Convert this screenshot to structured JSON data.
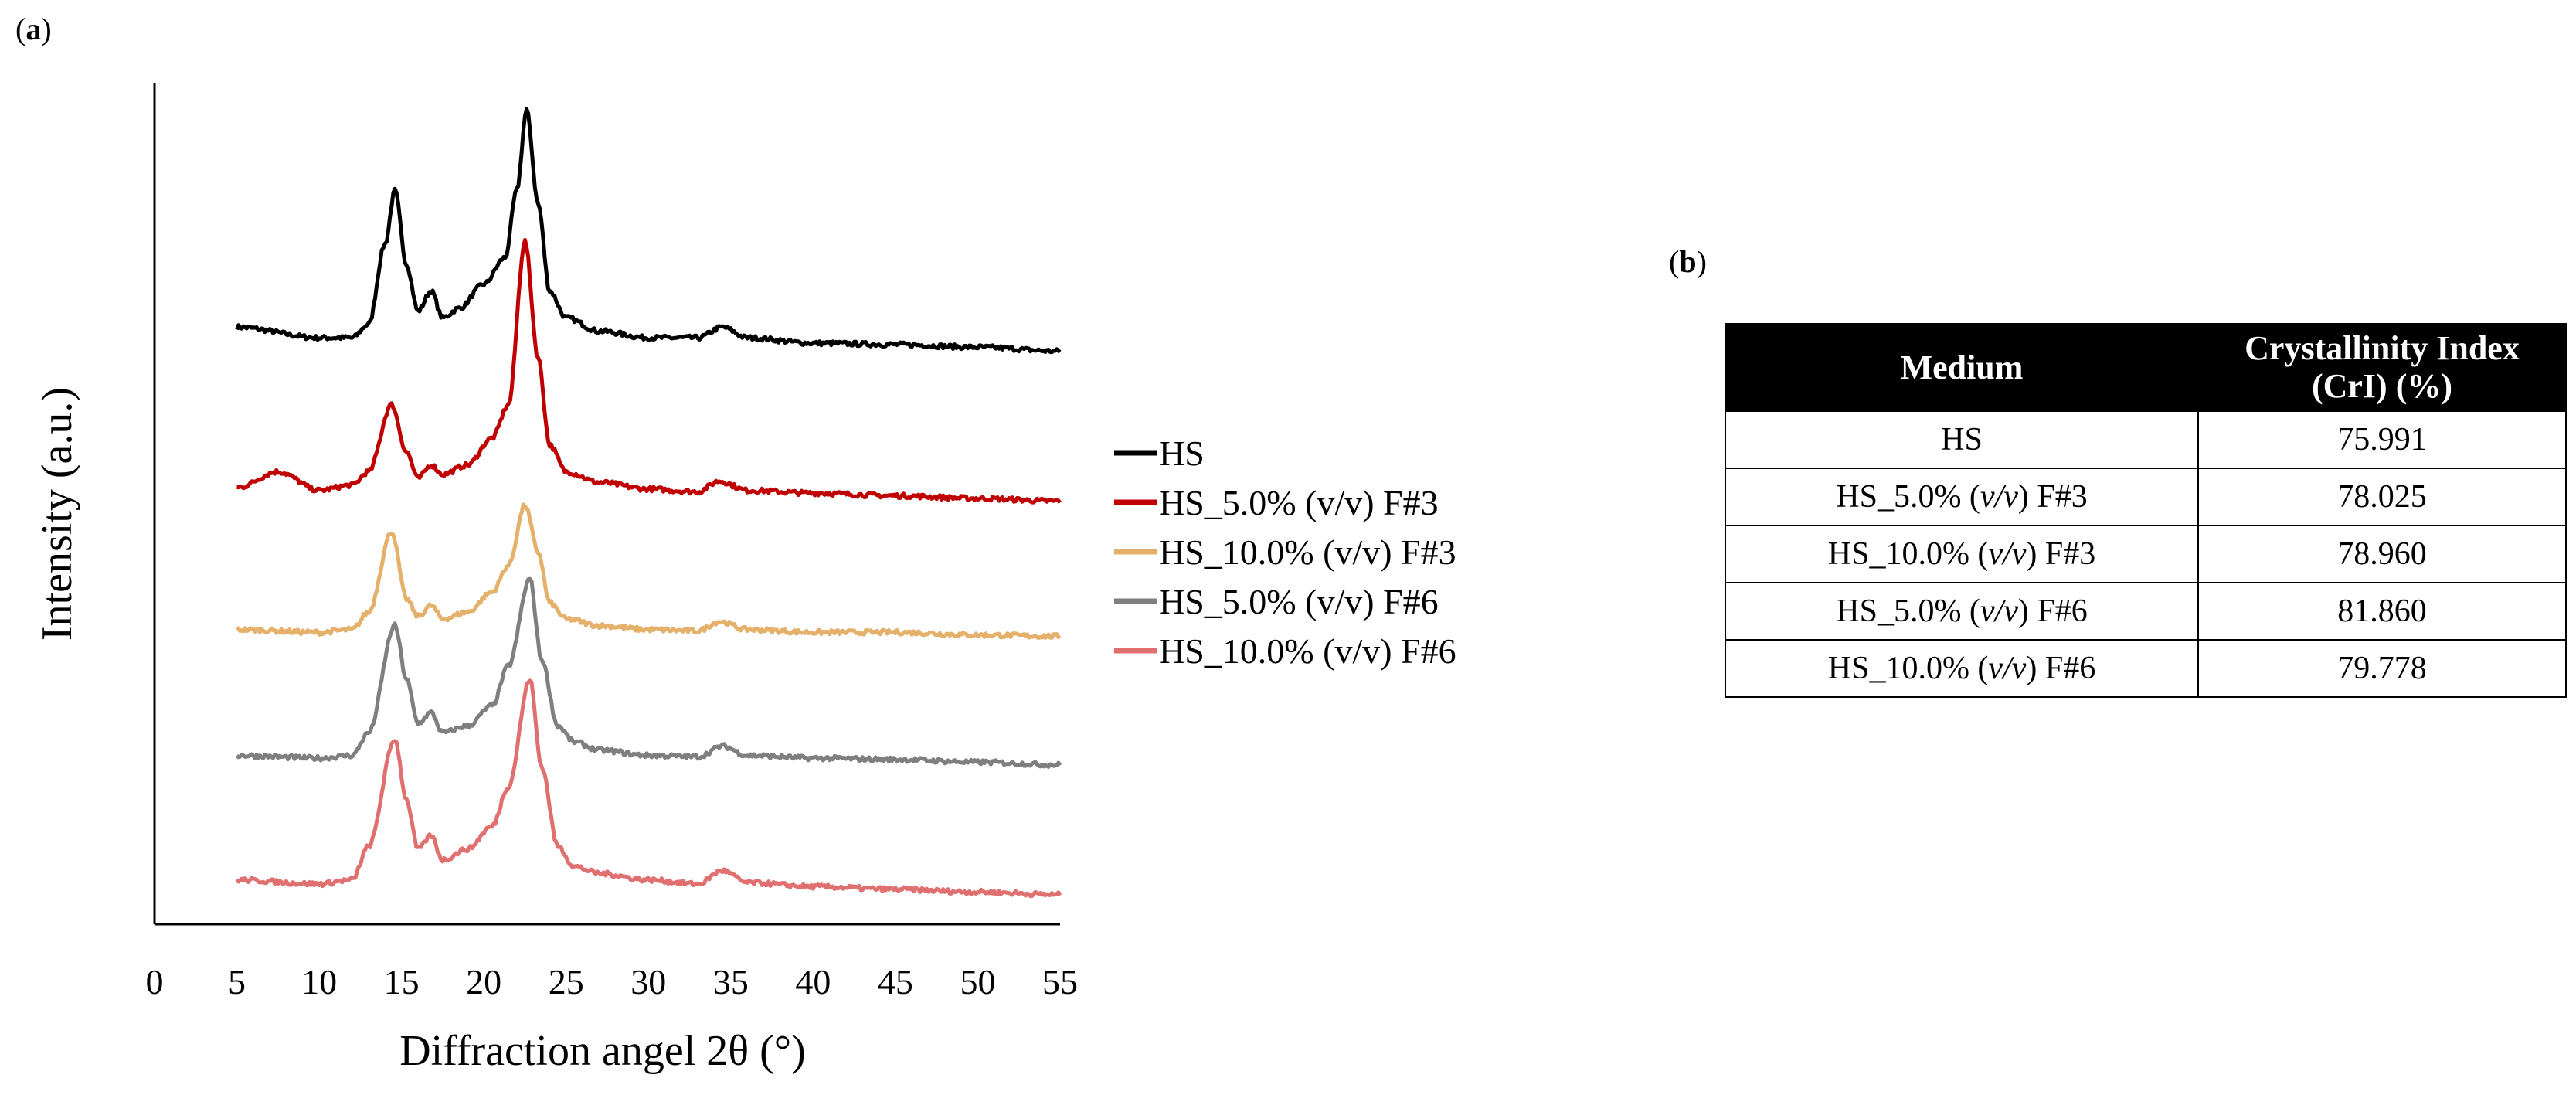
{
  "panel_labels": {
    "a": "a",
    "b": "b"
  },
  "chart_data": {
    "type": "line",
    "title": "",
    "xlabel": "Diffraction angel 2θ (°)",
    "ylabel": "Intensity (a.u.)",
    "xlim": [
      0,
      55
    ],
    "xticks": [
      "0",
      "5",
      "10",
      "15",
      "20",
      "25",
      "30",
      "35",
      "40",
      "45",
      "50",
      "55"
    ],
    "yticks": [],
    "grid": false,
    "legend_position": "right",
    "note": "Curves are vertically offset (stacked); intensities are relative (a.u.).",
    "series": [
      {
        "name": "HS",
        "color": "#000000",
        "baseline": 4.0,
        "points": [
          [
            5,
            4.08
          ],
          [
            10,
            4.0
          ],
          [
            12,
            4.0
          ],
          [
            13,
            4.1
          ],
          [
            14,
            4.7
          ],
          [
            14.6,
            5.1
          ],
          [
            15.3,
            4.55
          ],
          [
            16,
            4.2
          ],
          [
            16.8,
            4.35
          ],
          [
            17.5,
            4.15
          ],
          [
            18.5,
            4.22
          ],
          [
            20,
            4.4
          ],
          [
            21.3,
            4.6
          ],
          [
            22,
            5.1
          ],
          [
            22.6,
            5.7
          ],
          [
            23.3,
            5.0
          ],
          [
            24,
            4.35
          ],
          [
            25,
            4.15
          ],
          [
            27,
            4.05
          ],
          [
            30,
            4.0
          ],
          [
            33,
            4.0
          ],
          [
            34.5,
            4.08
          ],
          [
            36,
            4.0
          ],
          [
            40,
            3.96
          ],
          [
            45,
            3.95
          ],
          [
            50,
            3.93
          ],
          [
            55,
            3.9
          ]
        ]
      },
      {
        "name": "HS_5.0% (v/v) F#3",
        "color": "#c00000",
        "baseline": 2.85,
        "points": [
          [
            5,
            2.88
          ],
          [
            7.5,
            3.0
          ],
          [
            10,
            2.86
          ],
          [
            12,
            2.9
          ],
          [
            13,
            3.0
          ],
          [
            14.4,
            3.5
          ],
          [
            15.3,
            3.15
          ],
          [
            16,
            2.95
          ],
          [
            16.8,
            3.05
          ],
          [
            17.5,
            2.98
          ],
          [
            19,
            3.05
          ],
          [
            20.5,
            3.25
          ],
          [
            21.5,
            3.5
          ],
          [
            22.5,
            4.72
          ],
          [
            23.3,
            3.85
          ],
          [
            24,
            3.2
          ],
          [
            25,
            3.0
          ],
          [
            27,
            2.92
          ],
          [
            30,
            2.87
          ],
          [
            33,
            2.85
          ],
          [
            34.3,
            2.93
          ],
          [
            36,
            2.86
          ],
          [
            40,
            2.84
          ],
          [
            45,
            2.82
          ],
          [
            50,
            2.8
          ],
          [
            55,
            2.78
          ]
        ]
      },
      {
        "name": "HS_10.0% (v/v) F#3",
        "color": "#e4b06a",
        "baseline": 1.8,
        "points": [
          [
            5,
            1.82
          ],
          [
            10,
            1.8
          ],
          [
            12,
            1.82
          ],
          [
            13,
            1.95
          ],
          [
            14.4,
            2.55
          ],
          [
            15.3,
            2.05
          ],
          [
            16,
            1.92
          ],
          [
            16.8,
            2.0
          ],
          [
            17.5,
            1.9
          ],
          [
            19,
            1.95
          ],
          [
            20.5,
            2.1
          ],
          [
            21.5,
            2.3
          ],
          [
            22.5,
            2.75
          ],
          [
            23.3,
            2.4
          ],
          [
            24,
            2.02
          ],
          [
            25,
            1.9
          ],
          [
            27,
            1.85
          ],
          [
            30,
            1.82
          ],
          [
            33,
            1.81
          ],
          [
            34.3,
            1.88
          ],
          [
            36,
            1.82
          ],
          [
            40,
            1.8
          ],
          [
            45,
            1.8
          ],
          [
            50,
            1.78
          ],
          [
            55,
            1.77
          ]
        ]
      },
      {
        "name": "HS_5.0% (v/v) F#6",
        "color": "#7f7f7f",
        "baseline": 0.85,
        "points": [
          [
            5,
            0.88
          ],
          [
            10,
            0.86
          ],
          [
            12,
            0.88
          ],
          [
            13,
            1.05
          ],
          [
            14.6,
            1.85
          ],
          [
            15.3,
            1.45
          ],
          [
            16,
            1.12
          ],
          [
            16.8,
            1.2
          ],
          [
            17.5,
            1.05
          ],
          [
            19,
            1.1
          ],
          [
            20.5,
            1.25
          ],
          [
            21.5,
            1.55
          ],
          [
            22.8,
            2.2
          ],
          [
            23.5,
            1.6
          ],
          [
            24.5,
            1.1
          ],
          [
            25.5,
            0.98
          ],
          [
            27,
            0.92
          ],
          [
            30,
            0.88
          ],
          [
            33,
            0.87
          ],
          [
            34.5,
            0.95
          ],
          [
            36,
            0.88
          ],
          [
            40,
            0.86
          ],
          [
            45,
            0.85
          ],
          [
            50,
            0.83
          ],
          [
            55,
            0.81
          ]
        ]
      },
      {
        "name": "HS_10.0% (v/v) F#6",
        "color": "#e07070",
        "baseline": -0.1,
        "points": [
          [
            5,
            -0.05
          ],
          [
            10,
            -0.08
          ],
          [
            12,
            -0.05
          ],
          [
            13,
            0.2
          ],
          [
            14.6,
            1.0
          ],
          [
            15.3,
            0.55
          ],
          [
            16,
            0.18
          ],
          [
            16.8,
            0.28
          ],
          [
            17.5,
            0.1
          ],
          [
            19,
            0.18
          ],
          [
            20.5,
            0.35
          ],
          [
            21.5,
            0.65
          ],
          [
            22.8,
            1.45
          ],
          [
            23.5,
            0.8
          ],
          [
            24.5,
            0.2
          ],
          [
            25.5,
            0.05
          ],
          [
            27,
            0.0
          ],
          [
            30,
            -0.05
          ],
          [
            33,
            -0.08
          ],
          [
            34.5,
            0.02
          ],
          [
            36,
            -0.07
          ],
          [
            40,
            -0.1
          ],
          [
            45,
            -0.12
          ],
          [
            50,
            -0.14
          ],
          [
            55,
            -0.16
          ]
        ]
      }
    ]
  },
  "table": {
    "headers": [
      "Medium",
      "Crystallinity Index\n(CrI) (%)"
    ],
    "header_line1": "Crystallinity Index",
    "header_line2": "(CrI) (%)",
    "rows": [
      {
        "medium_pre": "HS",
        "unit": "",
        "medium_post": "",
        "value": "75.991"
      },
      {
        "medium_pre": "HS_5.0% (",
        "unit": "v/v",
        "medium_post": ") F#3",
        "value": "78.025"
      },
      {
        "medium_pre": "HS_10.0% (",
        "unit": "v/v",
        "medium_post": ") F#3",
        "value": "78.960"
      },
      {
        "medium_pre": "HS_5.0% (",
        "unit": "v/v",
        "medium_post": ") F#6",
        "value": "81.860"
      },
      {
        "medium_pre": "HS_10.0% (",
        "unit": "v/v",
        "medium_post": ") F#6",
        "value": "79.778"
      }
    ]
  }
}
